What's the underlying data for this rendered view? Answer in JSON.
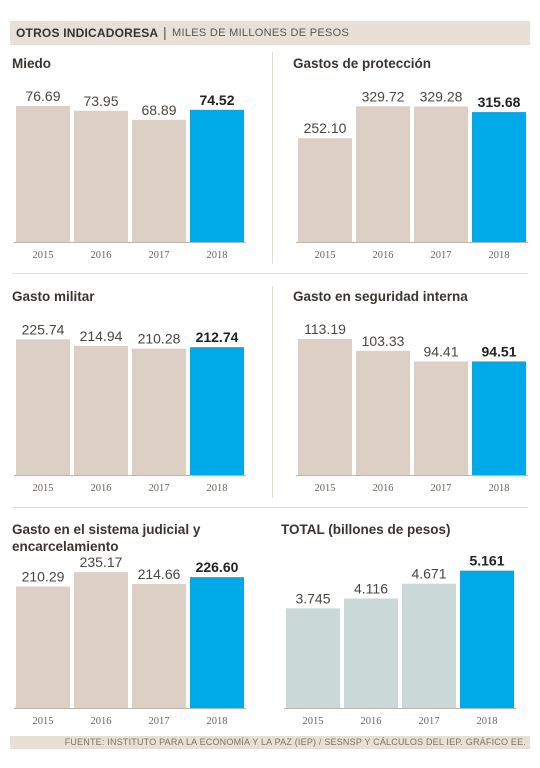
{
  "header": {
    "title": "OTROS INDICADORESA",
    "separator": "|",
    "subtitle": "MILES DE MILLONES DE PESOS"
  },
  "footer": {
    "source": "FUENTE: INSTITUTO PARA LA ECONOMÍA Y LA PAZ (IEP) / SESNSP Y CÁLCULOS DEL IEP. GRÁFICO EE."
  },
  "colors": {
    "bar": "#dccfc3",
    "highlight": "#00a9e8",
    "total_bar": "#cad9d8",
    "axis": "#bdb5ab"
  },
  "chart_data": [
    {
      "type": "bar",
      "title": "Miedo",
      "categories": [
        "2015",
        "2016",
        "2017",
        "2018"
      ],
      "values": [
        76.69,
        73.95,
        68.89,
        74.52
      ],
      "labels": [
        "76.69",
        "73.95",
        "68.89",
        "74.52"
      ],
      "highlight_index": 3,
      "ylim": [
        0,
        84
      ]
    },
    {
      "type": "bar",
      "title": "Gastos de protección",
      "categories": [
        "2015",
        "2016",
        "2017",
        "2018"
      ],
      "values": [
        252.1,
        329.72,
        329.28,
        315.68
      ],
      "labels": [
        "252.10",
        "329.72",
        "329.28",
        "315.68"
      ],
      "highlight_index": 3,
      "ylim": [
        0,
        362
      ]
    },
    {
      "type": "bar",
      "title": "Gasto militar",
      "categories": [
        "2015",
        "2016",
        "2017",
        "2018"
      ],
      "values": [
        225.74,
        214.94,
        210.28,
        212.74
      ],
      "labels": [
        "225.74",
        "214.94",
        "210.28",
        "212.74"
      ],
      "highlight_index": 3,
      "ylim": [
        0,
        248
      ]
    },
    {
      "type": "bar",
      "title": "Gasto en seguridad interna",
      "categories": [
        "2015",
        "2016",
        "2017",
        "2018"
      ],
      "values": [
        113.19,
        103.33,
        94.41,
        94.51
      ],
      "labels": [
        "113.19",
        "103.33",
        "94.41",
        "94.51"
      ],
      "highlight_index": 3,
      "ylim": [
        0,
        124
      ]
    },
    {
      "type": "bar",
      "title": "Gasto en el sistema judicial y encarcelamiento",
      "title_lines": [
        "Gasto en el sistema judicial y",
        "encarcelamiento"
      ],
      "categories": [
        "2015",
        "2016",
        "2017",
        "2018"
      ],
      "values": [
        210.29,
        235.17,
        214.66,
        226.6
      ],
      "labels": [
        "210.29",
        "235.17",
        "214.66",
        "226.60"
      ],
      "highlight_index": 3,
      "ylim": [
        0,
        258
      ]
    },
    {
      "type": "bar",
      "title": "TOTAL (billones de pesos)",
      "categories": [
        "2015",
        "2016",
        "2017",
        "2018"
      ],
      "values": [
        3.745,
        4.116,
        4.671,
        5.161
      ],
      "labels": [
        "3.745",
        "4.116",
        "4.671",
        "5.161"
      ],
      "highlight_index": 3,
      "ylim": [
        0,
        5.6
      ]
    }
  ]
}
